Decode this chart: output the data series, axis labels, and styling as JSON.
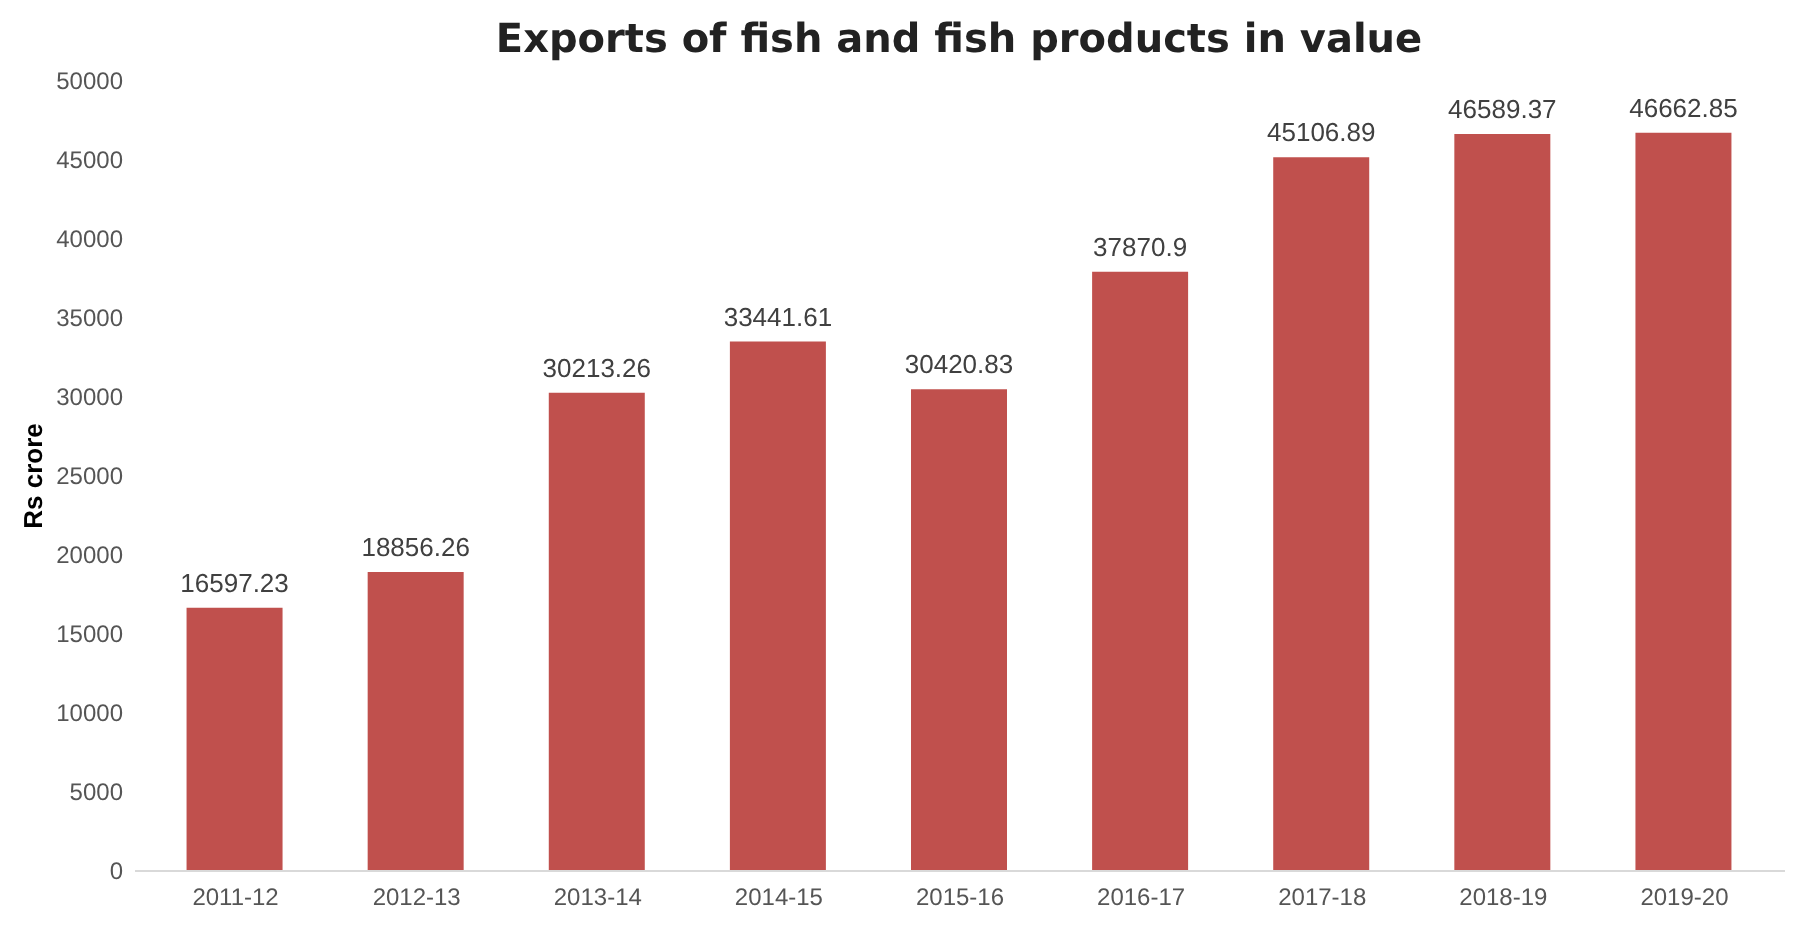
{
  "chart_data": {
    "type": "bar",
    "title": "Exports of fish and fish products in value",
    "ylabel": "Rs crore",
    "categories": [
      "2011-12",
      "2012-13",
      "2013-14",
      "2014-15",
      "2015-16",
      "2016-17",
      "2017-18",
      "2018-19",
      "2019-20"
    ],
    "values": [
      16597.23,
      18856.26,
      30213.26,
      33441.61,
      30420.83,
      37870.9,
      45106.89,
      46589.37,
      46662.85
    ],
    "color": "#c0504d",
    "ylim": [
      0,
      50000
    ],
    "yticks": [
      0,
      5000,
      10000,
      15000,
      20000,
      25000,
      30000,
      35000,
      40000,
      45000,
      50000
    ],
    "grid": false,
    "data_labels": true
  }
}
